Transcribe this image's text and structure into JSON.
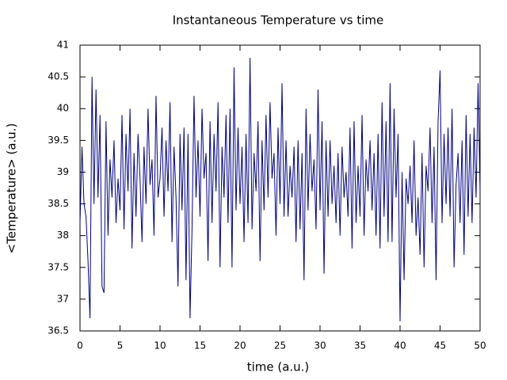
{
  "chart_data": {
    "type": "line",
    "title": "Instantaneous Temperature vs time",
    "x_label": "time (a.u.)",
    "y_label": "<Temperature> (a.u.)",
    "color": "#000080",
    "xlim": [
      0,
      50
    ],
    "xticks": [
      0,
      5,
      10,
      15,
      20,
      25,
      30,
      35,
      40,
      45,
      50
    ],
    "ylim": [
      36.5,
      41
    ],
    "yticks": [
      36.5,
      37,
      37.5,
      38,
      38.5,
      39,
      39.5,
      40,
      40.5,
      41
    ],
    "x": [
      0,
      0.25,
      0.5,
      0.75,
      1,
      1.25,
      1.5,
      1.75,
      2,
      2.25,
      2.5,
      2.75,
      3,
      3.25,
      3.5,
      3.75,
      4,
      4.25,
      4.5,
      4.75,
      5,
      5.25,
      5.5,
      5.75,
      6,
      6.25,
      6.5,
      6.75,
      7,
      7.25,
      7.5,
      7.75,
      8,
      8.25,
      8.5,
      8.75,
      9,
      9.25,
      9.5,
      9.75,
      10,
      10.25,
      10.5,
      10.75,
      11,
      11.25,
      11.5,
      11.75,
      12,
      12.25,
      12.5,
      12.75,
      13,
      13.25,
      13.5,
      13.75,
      14,
      14.25,
      14.5,
      14.75,
      15,
      15.25,
      15.5,
      15.75,
      16,
      16.25,
      16.5,
      16.75,
      17,
      17.25,
      17.5,
      17.75,
      18,
      18.25,
      18.5,
      18.75,
      19,
      19.25,
      19.5,
      19.75,
      20,
      20.25,
      20.5,
      20.75,
      21,
      21.25,
      21.5,
      21.75,
      22,
      22.25,
      22.5,
      22.75,
      23,
      23.25,
      23.5,
      23.75,
      24,
      24.25,
      24.5,
      24.75,
      25,
      25.25,
      25.5,
      25.75,
      26,
      26.25,
      26.5,
      26.75,
      27,
      27.25,
      27.5,
      27.75,
      28,
      28.25,
      28.5,
      28.75,
      29,
      29.25,
      29.5,
      29.75,
      30,
      30.25,
      30.5,
      30.75,
      31,
      31.25,
      31.5,
      31.75,
      32,
      32.25,
      32.5,
      32.75,
      33,
      33.25,
      33.5,
      33.75,
      34,
      34.25,
      34.5,
      34.75,
      35,
      35.25,
      35.5,
      35.75,
      36,
      36.25,
      36.5,
      36.75,
      37,
      37.25,
      37.5,
      37.75,
      38,
      38.25,
      38.5,
      38.75,
      39,
      39.25,
      39.5,
      39.75,
      40,
      40.25,
      40.5,
      40.75,
      41,
      41.25,
      41.5,
      41.75,
      42,
      42.25,
      42.5,
      42.75,
      43,
      43.25,
      43.5,
      43.75,
      44,
      44.25,
      44.5,
      44.75,
      45,
      45.25,
      45.5,
      45.75,
      46,
      46.25,
      46.5,
      46.75,
      47,
      47.25,
      47.5,
      47.75,
      48,
      48.25,
      48.5,
      48.75,
      49,
      49.25,
      49.5,
      49.75,
      50
    ],
    "values": [
      38.2,
      39.4,
      38.5,
      38.3,
      37.6,
      36.7,
      40.5,
      38.5,
      40.3,
      38.6,
      39.9,
      37.2,
      37.1,
      39.8,
      38.0,
      39.2,
      38.6,
      39.5,
      38.2,
      38.9,
      38.4,
      39.9,
      38.1,
      39.6,
      38.7,
      40.0,
      37.8,
      39.3,
      38.3,
      39.6,
      38.9,
      37.9,
      39.4,
      38.5,
      40.0,
      38.8,
      39.2,
      38.0,
      40.2,
      38.6,
      38.9,
      39.7,
      38.3,
      39.5,
      38.7,
      40.1,
      37.9,
      39.4,
      38.6,
      37.2,
      39.6,
      38.4,
      39.7,
      37.3,
      39.6,
      36.7,
      38.1,
      40.2,
      38.6,
      39.5,
      38.3,
      40.0,
      38.9,
      39.3,
      37.6,
      39.8,
      38.2,
      39.6,
      38.7,
      40.1,
      37.5,
      39.4,
      38.6,
      39.9,
      38.2,
      40.0,
      37.5,
      40.65,
      38.4,
      39.7,
      38.5,
      39.4,
      37.9,
      39.6,
      38.2,
      40.8,
      38.1,
      39.3,
      38.7,
      39.8,
      37.6,
      39.5,
      38.4,
      39.9,
      38.6,
      40.1,
      38.9,
      39.3,
      38.0,
      39.7,
      38.5,
      40.4,
      38.3,
      39.5,
      38.3,
      39.1,
      38.6,
      39.4,
      37.9,
      39.5,
      38.1,
      39.3,
      37.3,
      40.0,
      38.4,
      39.6,
      38.7,
      39.2,
      38.1,
      40.3,
      38.4,
      39.8,
      37.4,
      39.5,
      38.3,
      39.5,
      38.5,
      39.1,
      38.2,
      39.3,
      38.0,
      39.4,
      38.6,
      39.0,
      38.3,
      39.7,
      37.8,
      39.8,
      38.2,
      39.1,
      38.3,
      39.9,
      38.0,
      39.2,
      38.7,
      39.5,
      38.4,
      39.3,
      38.0,
      39.6,
      37.8,
      40.1,
      38.3,
      39.8,
      37.9,
      40.4,
      37.9,
      40.0,
      38.6,
      39.6,
      36.65,
      39.0,
      37.3,
      38.9,
      38.5,
      39.1,
      38.2,
      39.5,
      38.0,
      38.6,
      37.7,
      39.3,
      37.5,
      39.1,
      38.7,
      39.7,
      38.2,
      39.4,
      37.3,
      39.8,
      40.6,
      38.2,
      39.6,
      38.5,
      39.7,
      38.3,
      40.0,
      37.5,
      38.8,
      39.3,
      38.2,
      39.5,
      37.7,
      39.9,
      38.3,
      39.6,
      38.2,
      39.7,
      38.6,
      40.4,
      38.7
    ]
  }
}
